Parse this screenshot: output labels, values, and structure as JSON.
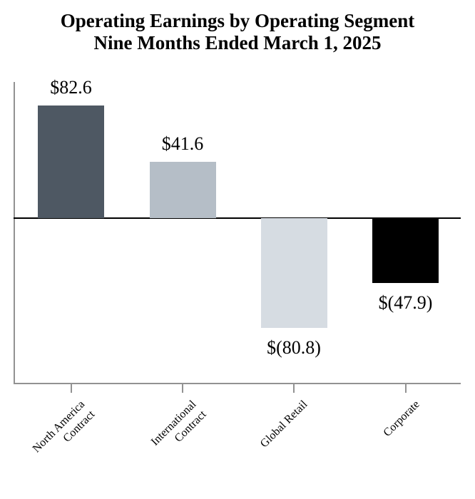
{
  "title": {
    "line1": "Operating Earnings by Operating Segment",
    "line2": "Nine Months Ended March 1, 2025"
  },
  "chart_data": {
    "type": "bar",
    "title": "Operating Earnings by Operating Segment",
    "subtitle": "Nine Months Ended March 1, 2025",
    "categories": [
      "North America Contract",
      "International Contract",
      "Global Retail",
      "Corporate"
    ],
    "values": [
      82.6,
      41.6,
      -80.8,
      -47.9
    ],
    "data_labels": [
      "$82.6",
      "$41.6",
      "$(80.8)",
      "$(47.9)"
    ],
    "bar_colors": [
      "#4e5863",
      "#b5bec7",
      "#d6dce2",
      "#000000"
    ],
    "baseline": 0,
    "grid": false,
    "legend": false,
    "xlabel": "",
    "ylabel": "",
    "y_axis_tick_labels_visible": false
  },
  "axis": {
    "category_label_lines": [
      [
        "North America",
        "Contract"
      ],
      [
        "International",
        "Contract"
      ],
      [
        "Global Retail"
      ],
      [
        "Corporate"
      ]
    ]
  },
  "colors": {
    "axis_line": "#929292",
    "zero_line": "#000000",
    "text": "#000000",
    "background": "#ffffff"
  }
}
